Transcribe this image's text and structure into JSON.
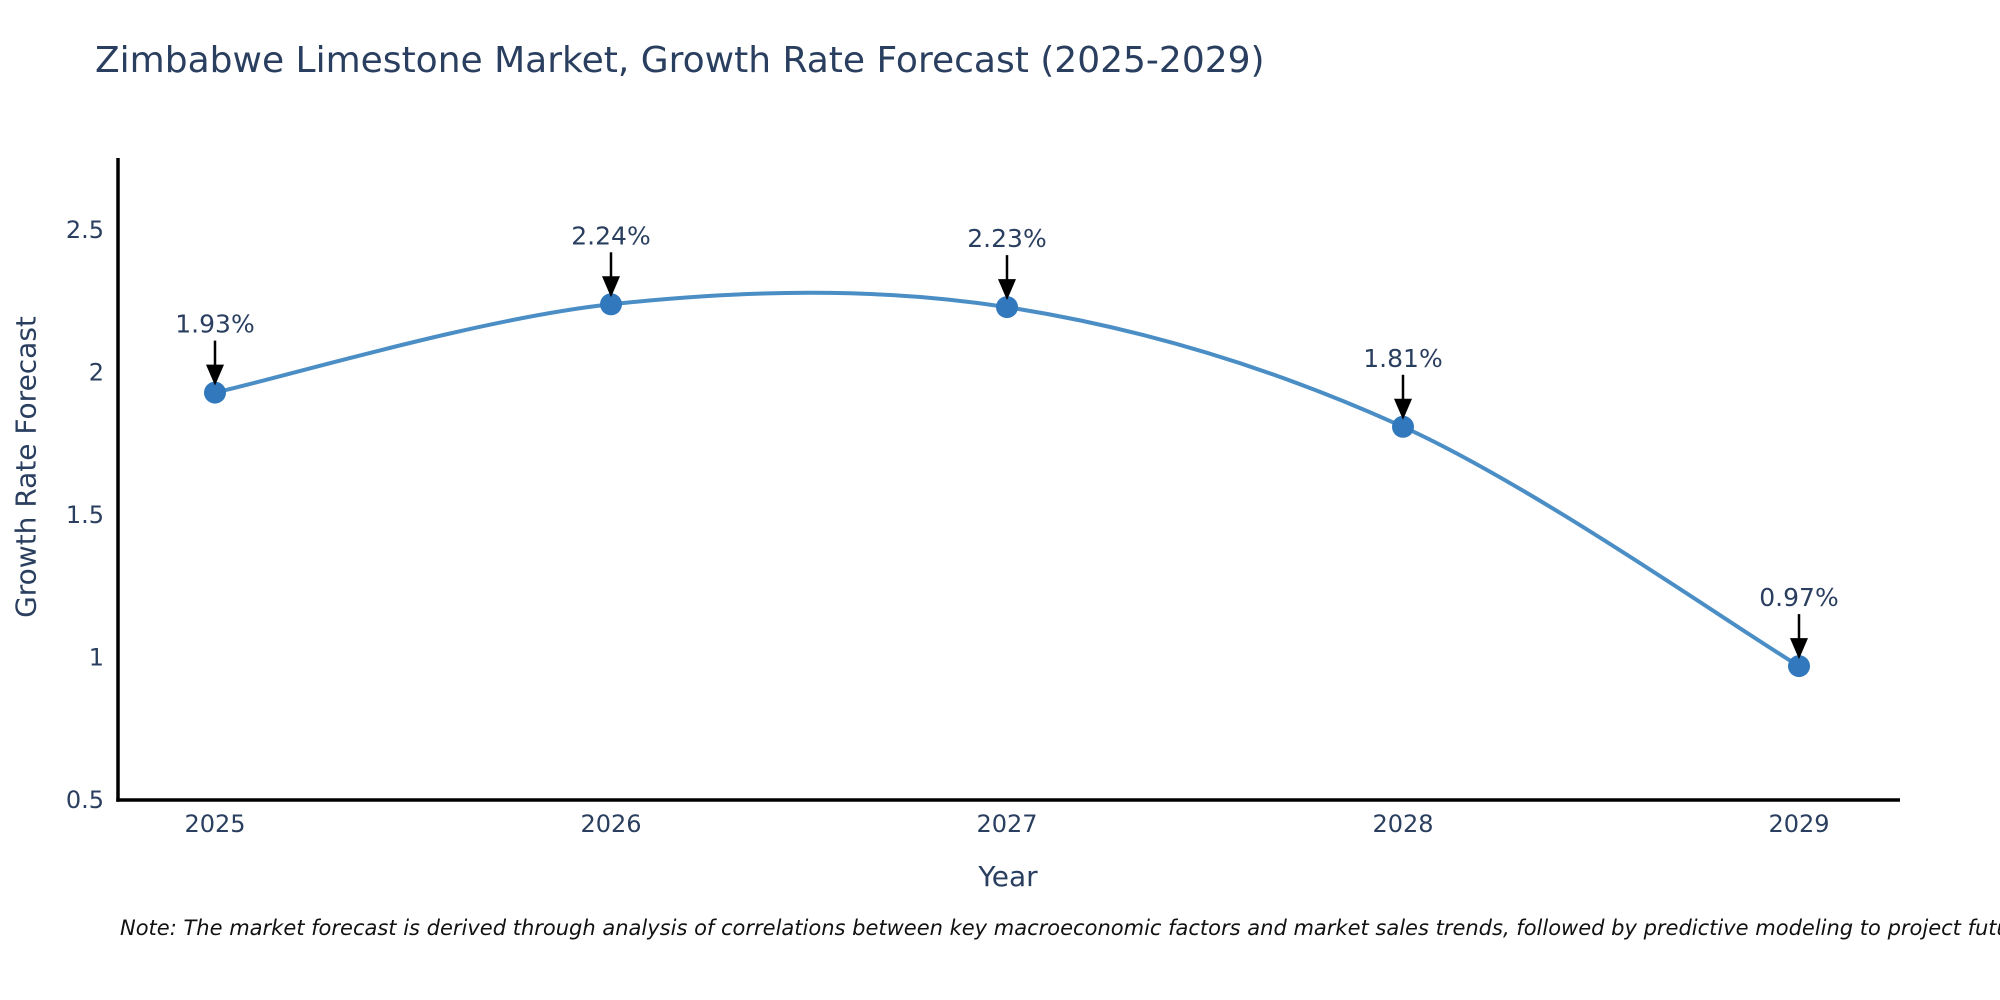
{
  "title": "Zimbabwe Limestone Market, Growth Rate Forecast (2025-2029)",
  "note": "Note: The market forecast is derived through analysis of correlations between key macroeconomic factors and market sales trends, followed by predictive modeling to project future sales",
  "chart_data": {
    "type": "line",
    "x": [
      2025,
      2026,
      2027,
      2028,
      2029
    ],
    "x_labels": [
      "2025",
      "2026",
      "2027",
      "2028",
      "2029"
    ],
    "values": [
      1.93,
      2.24,
      2.23,
      1.81,
      0.97
    ],
    "point_labels": [
      "1.93%",
      "2.24%",
      "2.23%",
      "1.81%",
      "0.97%"
    ],
    "xlabel": "Year",
    "ylabel": "Growth Rate Forecast",
    "ylim": [
      0.5,
      2.75
    ],
    "yticks": [
      0.5,
      1,
      1.5,
      2,
      2.5
    ],
    "ytick_labels": [
      "0.5",
      "1",
      "1.5",
      "2",
      "2.5"
    ],
    "grid": false,
    "legend": false,
    "line_shape": "spline",
    "colors": {
      "line": "#4a8ec5",
      "marker": "#3178bd",
      "axis": "#000000",
      "text": "#2a3f5f",
      "annotation_arrow": "#000000"
    }
  }
}
